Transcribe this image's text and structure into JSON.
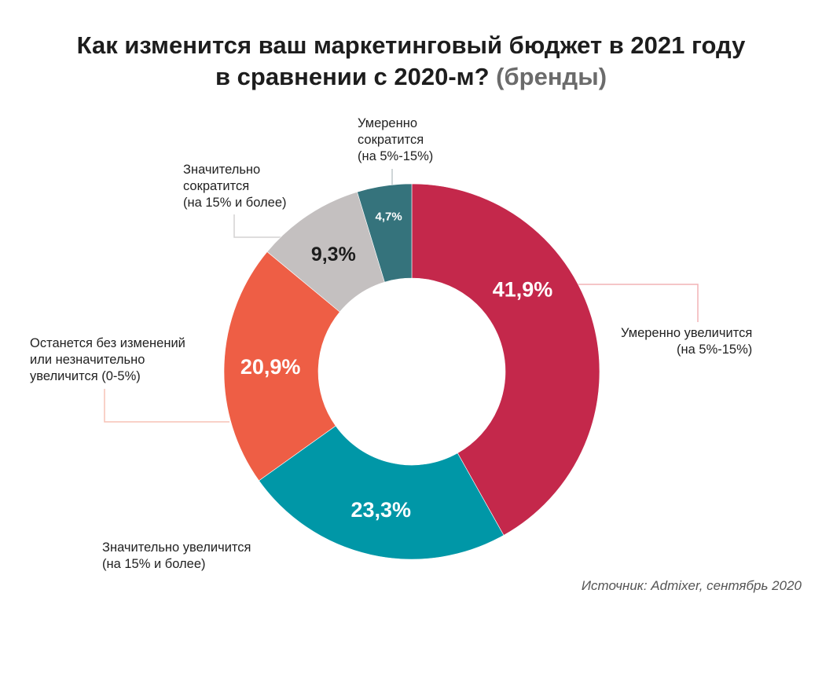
{
  "chart_data": {
    "type": "pie",
    "donut": true,
    "title": "Как изменится ваш маркетинговый бюджет в 2021 году в сравнении с 2020-м?",
    "title_line1": "Как изменится ваш маркетинговый бюджет в 2021 году",
    "title_line2": "в сравнении с 2020-м?",
    "subtitle": "(бренды)",
    "slices": [
      {
        "label": "Умеренно увеличится (на 5%-15%)",
        "value": 41.9,
        "value_label": "41,9%",
        "color": "#C4284B",
        "text_color": "#ffffff"
      },
      {
        "label": "Значительно увеличится (на 15% и более)",
        "value": 23.3,
        "value_label": "23,3%",
        "color": "#0097A7",
        "text_color": "#ffffff"
      },
      {
        "label": "Останется без изменений или незначительно увеличится (0-5%)",
        "value": 20.9,
        "value_label": "20,9%",
        "color": "#EE5E45",
        "text_color": "#ffffff"
      },
      {
        "label": "Значительно сократится (на 15% и более)",
        "value": 9.3,
        "value_label": "9,3%",
        "color": "#C4C0C0",
        "text_color": "#1d1d1d"
      },
      {
        "label": "Умеренно сократится (на 5%-15%)",
        "value": 4.7,
        "value_label": "4,7%",
        "color": "#35737C",
        "text_color": "#ffffff"
      }
    ],
    "source": "Источник: Admixer, сентябрь 2020"
  },
  "labels": {
    "s0": "Умеренно увеличится\n(на 5%-15%)",
    "s1": "Значительно увеличится\n(на 15% и более)",
    "s2": "Останется без изменений\nили незначительно\nувеличится (0-5%)",
    "s3": "Значительно\nсократится\n(на 15% и более)",
    "s4": "Умеренно\nсократится\n(на 5%-15%)"
  }
}
